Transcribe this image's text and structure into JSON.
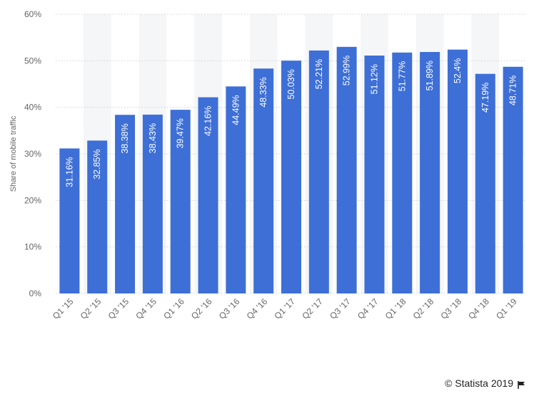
{
  "chart_data": {
    "type": "bar",
    "categories": [
      "Q1 '15",
      "Q2 '15",
      "Q3 '15",
      "Q4 '15",
      "Q1 '16",
      "Q2 '16",
      "Q3 '16",
      "Q4 '16",
      "Q1 '17",
      "Q2 '17",
      "Q3 '17",
      "Q4 '17",
      "Q1 '18",
      "Q2 '18",
      "Q3 '18",
      "Q4 '18",
      "Q1 '19"
    ],
    "values": [
      31.16,
      32.85,
      38.38,
      38.43,
      39.47,
      42.16,
      44.49,
      48.33,
      50.03,
      52.21,
      52.99,
      51.12,
      51.77,
      51.89,
      52.4,
      47.19,
      48.71
    ],
    "data_labels": [
      "31.16%",
      "32.85%",
      "38.38%",
      "38.43%",
      "39.47%",
      "42.16%",
      "44.49%",
      "48.33%",
      "50.03%",
      "52.21%",
      "52.99%",
      "51.12%",
      "51.77%",
      "51.89%",
      "52.4%",
      "47.19%",
      "48.71%"
    ],
    "ylabel": "Share of mobile traffic",
    "ylim": [
      0,
      60
    ],
    "yticks": [
      "0%",
      "10%",
      "20%",
      "30%",
      "40%",
      "50%",
      "60%"
    ],
    "grid": true,
    "bar_color": "#3d6fd6",
    "stripe_color": "#f5f6f8",
    "grid_color": "#cfcfcf"
  },
  "footer": {
    "copyright": "© Statista 2019",
    "icon": "flag-icon"
  }
}
